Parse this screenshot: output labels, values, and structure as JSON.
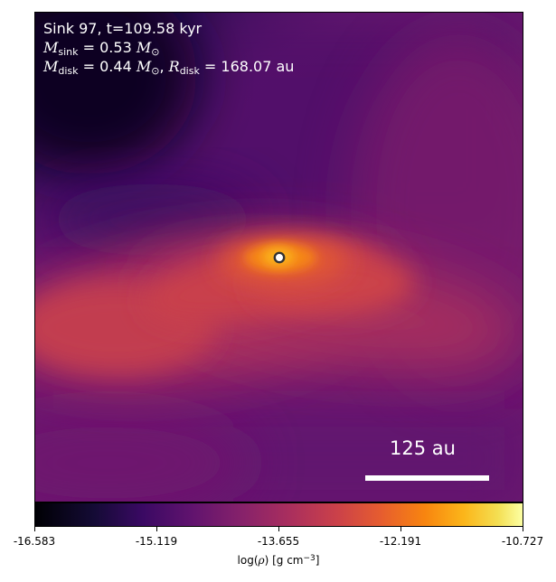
{
  "title": "Sink 97, t=109.58 kyr",
  "m_sink": {
    "symbol": "M",
    "subscript": "sink",
    "value": "= 0.53",
    "unit": "M",
    "unit_sub": "⊙"
  },
  "m_disk": {
    "symbol": "M",
    "subscript": "disk",
    "value": "= 0.44",
    "unit": "M",
    "unit_sub": "⊙",
    "sep": ","
  },
  "r_disk": {
    "symbol": "R",
    "subscript": "disk",
    "value": "= 168.07",
    "unit": "au"
  },
  "scalebar": {
    "label": "125 au"
  },
  "colorbar": {
    "colormap": "inferno",
    "ticks": [
      "-16.583",
      "-15.119",
      "-13.655",
      "-12.191",
      "-10.727"
    ],
    "label_prefix": "log(",
    "label_rho": "ρ",
    "label_units": ") [g cm",
    "label_exp": "−3",
    "label_close": "]"
  },
  "sink_marker": {
    "fill": "#ffffff",
    "stroke": "#333333"
  }
}
